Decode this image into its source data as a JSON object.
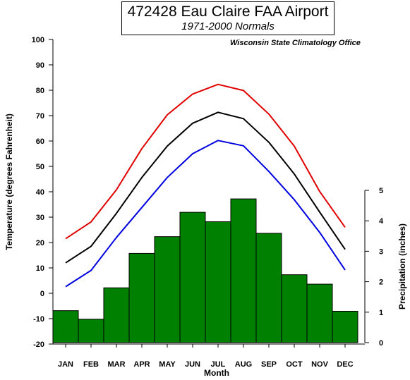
{
  "chart_data": {
    "type": "bar+line",
    "title": "472428 Eau Claire FAA Airport",
    "subtitle": "1971-2000 Normals",
    "source": "Wisconsin State Climatology Office",
    "xlabel": "Month",
    "ylabel_left": "Temperature (degrees Fahrenheit)",
    "ylabel_right": "Precipitation (inches)",
    "categories": [
      "JAN",
      "FEB",
      "MAR",
      "APR",
      "MAY",
      "JUN",
      "JUL",
      "AUG",
      "SEP",
      "OCT",
      "NOV",
      "DEC"
    ],
    "y_left": {
      "min": -20,
      "max": 100,
      "ticks": [
        100,
        90,
        80,
        70,
        60,
        50,
        40,
        30,
        20,
        10,
        0,
        -10,
        -20
      ]
    },
    "y_right": {
      "min": 0,
      "max": 5,
      "ticks": [
        5,
        4,
        3,
        2,
        1,
        0
      ]
    },
    "precipitation": [
      1.05,
      0.77,
      1.8,
      2.93,
      3.48,
      4.28,
      3.97,
      4.72,
      3.59,
      2.23,
      1.92,
      1.03
    ],
    "lines": [
      {
        "color": "#e00000",
        "values": [
          21.5,
          28.1,
          40.8,
          57.0,
          70.3,
          78.5,
          82.3,
          79.9,
          70.6,
          58.0,
          40.1,
          26.0
        ]
      },
      {
        "color": "#000000",
        "values": [
          12.0,
          18.5,
          31.5,
          45.6,
          58.0,
          67.0,
          71.3,
          68.8,
          59.5,
          47.0,
          32.0,
          17.3
        ]
      },
      {
        "color": "#0000e0",
        "values": [
          2.6,
          9.0,
          22.0,
          33.8,
          45.6,
          55.0,
          60.2,
          58.1,
          48.0,
          36.9,
          24.0,
          9.2
        ]
      }
    ],
    "bar_color": "#008000",
    "grid": false
  }
}
